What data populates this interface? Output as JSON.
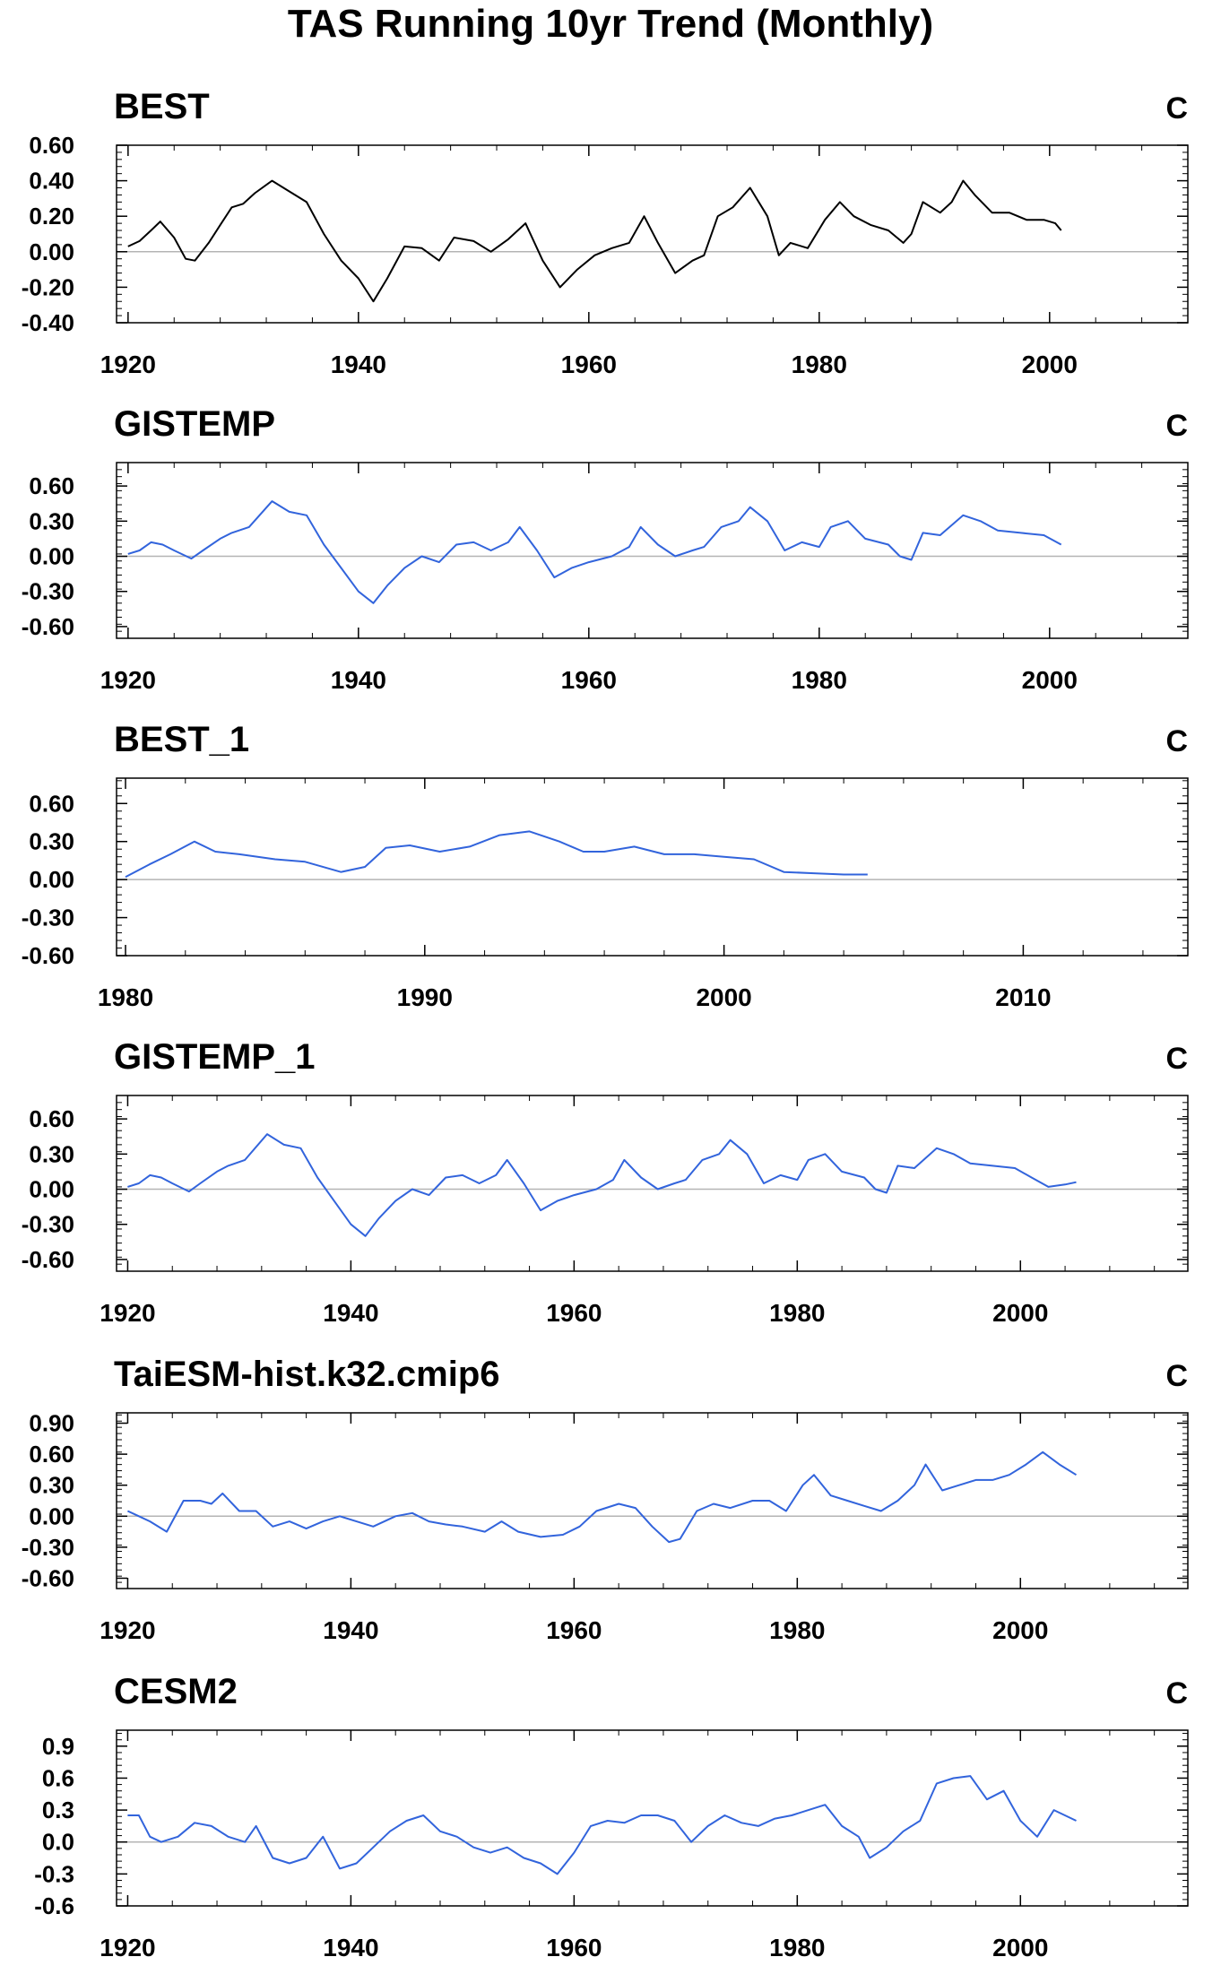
{
  "figure_title": "TAS Running 10yr Trend (Monthly)",
  "colors": {
    "obs_line": "#000000",
    "model_line": "#3264dc",
    "zero_line": "#b4b4b4",
    "frame": "#000000"
  },
  "chart_data": [
    {
      "type": "line",
      "title": "BEST",
      "units": "C",
      "color": "#000000",
      "xlim": [
        1919,
        2012
      ],
      "ylim": [
        -0.4,
        0.6
      ],
      "yticks": [
        -0.4,
        -0.2,
        0.0,
        0.2,
        0.4,
        0.6
      ],
      "ytick_labels": [
        "-0.40",
        "-0.20",
        "0.00",
        "0.20",
        "0.40",
        "0.60"
      ],
      "xticks": [
        1920,
        1940,
        1960,
        1980,
        2000
      ],
      "xtick_labels": [
        "1920",
        "1940",
        "1960",
        "1980",
        "2000"
      ],
      "x": [
        1920,
        1921,
        1922,
        1922.8,
        1924,
        1925,
        1925.8,
        1927,
        1928,
        1929,
        1930,
        1931,
        1932.5,
        1934,
        1935.5,
        1937,
        1938.5,
        1940,
        1941.3,
        1942.5,
        1944,
        1945.5,
        1947,
        1948.3,
        1950,
        1951.5,
        1953,
        1954.5,
        1956,
        1957.5,
        1959,
        1960.5,
        1962,
        1963.5,
        1964.8,
        1966,
        1967.5,
        1969,
        1970,
        1971.2,
        1972.5,
        1974,
        1975.5,
        1976.5,
        1977.5,
        1979,
        1980.5,
        1981.8,
        1983,
        1984.5,
        1986,
        1987.3,
        1988,
        1989,
        1990.5,
        1991.5,
        1992.5,
        1993.5,
        1995,
        1996.5,
        1998,
        1999.5,
        2000.5,
        2001
      ],
      "y": [
        0.03,
        0.06,
        0.12,
        0.17,
        0.08,
        -0.04,
        -0.05,
        0.05,
        0.15,
        0.25,
        0.27,
        0.33,
        0.4,
        0.34,
        0.28,
        0.1,
        -0.05,
        -0.15,
        -0.28,
        -0.15,
        0.03,
        0.02,
        -0.05,
        0.08,
        0.06,
        0.0,
        0.07,
        0.16,
        -0.05,
        -0.2,
        -0.1,
        -0.02,
        0.02,
        0.05,
        0.2,
        0.05,
        -0.12,
        -0.05,
        -0.02,
        0.2,
        0.25,
        0.36,
        0.2,
        -0.02,
        0.05,
        0.02,
        0.18,
        0.28,
        0.2,
        0.15,
        0.12,
        0.05,
        0.1,
        0.28,
        0.22,
        0.28,
        0.4,
        0.32,
        0.22,
        0.22,
        0.18,
        0.18,
        0.16,
        0.12
      ]
    },
    {
      "type": "line",
      "title": "GISTEMP",
      "units": "C",
      "color": "#3264dc",
      "xlim": [
        1919,
        2012
      ],
      "ylim": [
        -0.7,
        0.8
      ],
      "yticks": [
        -0.6,
        -0.3,
        0.0,
        0.3,
        0.6
      ],
      "ytick_labels": [
        "-0.60",
        "-0.30",
        "0.00",
        "0.30",
        "0.60"
      ],
      "xticks": [
        1920,
        1940,
        1960,
        1980,
        2000
      ],
      "xtick_labels": [
        "1920",
        "1940",
        "1960",
        "1980",
        "2000"
      ],
      "x": [
        1920,
        1921,
        1922,
        1923,
        1924,
        1925.5,
        1926.5,
        1928,
        1929,
        1930.5,
        1932.5,
        1934,
        1935.5,
        1937,
        1938.5,
        1940,
        1941.3,
        1942.5,
        1944,
        1945.5,
        1947,
        1948.5,
        1950,
        1951.5,
        1953,
        1954,
        1955.5,
        1957,
        1958.5,
        1960,
        1962,
        1963.5,
        1964.5,
        1966,
        1967.5,
        1969,
        1970,
        1971.5,
        1973,
        1974,
        1975.5,
        1977,
        1978.5,
        1980,
        1981,
        1982.5,
        1984,
        1986,
        1987,
        1988,
        1989,
        1990.5,
        1992.5,
        1994,
        1995.5,
        1997.5,
        1999.5,
        2001
      ],
      "y": [
        0.02,
        0.05,
        0.12,
        0.1,
        0.05,
        -0.02,
        0.05,
        0.15,
        0.2,
        0.25,
        0.47,
        0.38,
        0.35,
        0.1,
        -0.1,
        -0.3,
        -0.4,
        -0.25,
        -0.1,
        0.0,
        -0.05,
        0.1,
        0.12,
        0.05,
        0.12,
        0.25,
        0.05,
        -0.18,
        -0.1,
        -0.05,
        0.0,
        0.08,
        0.25,
        0.1,
        0.0,
        0.05,
        0.08,
        0.25,
        0.3,
        0.42,
        0.3,
        0.05,
        0.12,
        0.08,
        0.25,
        0.3,
        0.15,
        0.1,
        0.0,
        -0.03,
        0.2,
        0.18,
        0.35,
        0.3,
        0.22,
        0.2,
        0.18,
        0.1
      ]
    },
    {
      "type": "line",
      "title": "BEST_1",
      "units": "C",
      "color": "#3264dc",
      "xlim": [
        1979.7,
        2015.5
      ],
      "ylim": [
        -0.6,
        0.8
      ],
      "yticks": [
        -0.6,
        -0.3,
        0.0,
        0.3,
        0.6
      ],
      "ytick_labels": [
        "-0.60",
        "-0.30",
        "0.00",
        "0.30",
        "0.60"
      ],
      "xticks": [
        1980,
        1990,
        2000,
        2010
      ],
      "xtick_labels": [
        "1980",
        "1990",
        "2000",
        "2010"
      ],
      "x": [
        1980,
        1980.8,
        1981.5,
        1982.3,
        1983,
        1983.8,
        1985,
        1986,
        1987.2,
        1988,
        1988.7,
        1989.5,
        1990.5,
        1991.5,
        1992.5,
        1993.5,
        1994.5,
        1995.3,
        1996,
        1997,
        1998,
        1999,
        2000,
        2001,
        2002,
        2003,
        2004,
        2004.8
      ],
      "y": [
        0.02,
        0.12,
        0.2,
        0.3,
        0.22,
        0.2,
        0.16,
        0.14,
        0.06,
        0.1,
        0.25,
        0.27,
        0.22,
        0.26,
        0.35,
        0.38,
        0.3,
        0.22,
        0.22,
        0.26,
        0.2,
        0.2,
        0.18,
        0.16,
        0.06,
        0.05,
        0.04,
        0.04
      ]
    },
    {
      "type": "line",
      "title": "GISTEMP_1",
      "units": "C",
      "color": "#3264dc",
      "xlim": [
        1919,
        2015
      ],
      "ylim": [
        -0.7,
        0.8
      ],
      "yticks": [
        -0.6,
        -0.3,
        0.0,
        0.3,
        0.6
      ],
      "ytick_labels": [
        "-0.60",
        "-0.30",
        "0.00",
        "0.30",
        "0.60"
      ],
      "xticks": [
        1920,
        1940,
        1960,
        1980,
        2000
      ],
      "xtick_labels": [
        "1920",
        "1940",
        "1960",
        "1980",
        "2000"
      ],
      "x": [
        1920,
        1921,
        1922,
        1923,
        1924,
        1925.5,
        1926.5,
        1928,
        1929,
        1930.5,
        1932.5,
        1934,
        1935.5,
        1937,
        1938.5,
        1940,
        1941.3,
        1942.5,
        1944,
        1945.5,
        1947,
        1948.5,
        1950,
        1951.5,
        1953,
        1954,
        1955.5,
        1957,
        1958.5,
        1960,
        1962,
        1963.5,
        1964.5,
        1966,
        1967.5,
        1969,
        1970,
        1971.5,
        1973,
        1974,
        1975.5,
        1977,
        1978.5,
        1980,
        1981,
        1982.5,
        1984,
        1986,
        1987,
        1988,
        1989,
        1990.5,
        1992.5,
        1994,
        1995.5,
        1997.5,
        1999.5,
        2001,
        2002.5,
        2004,
        2005
      ],
      "y": [
        0.02,
        0.05,
        0.12,
        0.1,
        0.05,
        -0.02,
        0.05,
        0.15,
        0.2,
        0.25,
        0.47,
        0.38,
        0.35,
        0.1,
        -0.1,
        -0.3,
        -0.4,
        -0.25,
        -0.1,
        0.0,
        -0.05,
        0.1,
        0.12,
        0.05,
        0.12,
        0.25,
        0.05,
        -0.18,
        -0.1,
        -0.05,
        0.0,
        0.08,
        0.25,
        0.1,
        0.0,
        0.05,
        0.08,
        0.25,
        0.3,
        0.42,
        0.3,
        0.05,
        0.12,
        0.08,
        0.25,
        0.3,
        0.15,
        0.1,
        0.0,
        -0.03,
        0.2,
        0.18,
        0.35,
        0.3,
        0.22,
        0.2,
        0.18,
        0.1,
        0.02,
        0.04,
        0.06
      ]
    },
    {
      "type": "line",
      "title": "TaiESM-hist.k32.cmip6",
      "units": "C",
      "color": "#3264dc",
      "xlim": [
        1919,
        2015
      ],
      "ylim": [
        -0.7,
        1.0
      ],
      "yticks": [
        -0.6,
        -0.3,
        0.0,
        0.3,
        0.6,
        0.9
      ],
      "ytick_labels": [
        "-0.60",
        "-0.30",
        "0.00",
        "0.30",
        "0.60",
        "0.90"
      ],
      "xticks": [
        1920,
        1940,
        1960,
        1980,
        2000
      ],
      "xtick_labels": [
        "1920",
        "1940",
        "1960",
        "1980",
        "2000"
      ],
      "x": [
        1920,
        1921,
        1922,
        1923.5,
        1925,
        1926.5,
        1927.5,
        1928.5,
        1930,
        1931.5,
        1933,
        1934.5,
        1936,
        1937.5,
        1939,
        1940.5,
        1942,
        1944,
        1945.5,
        1947,
        1948.5,
        1950,
        1952,
        1953.5,
        1955,
        1957,
        1959,
        1960.5,
        1962,
        1964,
        1965.5,
        1967,
        1968.5,
        1969.5,
        1971,
        1972.5,
        1974,
        1976,
        1977.5,
        1979,
        1980.5,
        1981.5,
        1983,
        1984.5,
        1986,
        1987.5,
        1989,
        1990.5,
        1991.5,
        1993,
        1994.5,
        1996,
        1997.5,
        1999,
        2000.5,
        2002,
        2003.5,
        2005
      ],
      "y": [
        0.05,
        0.0,
        -0.05,
        -0.15,
        0.15,
        0.15,
        0.12,
        0.22,
        0.05,
        0.05,
        -0.1,
        -0.05,
        -0.12,
        -0.05,
        0.0,
        -0.05,
        -0.1,
        0.0,
        0.03,
        -0.05,
        -0.08,
        -0.1,
        -0.15,
        -0.05,
        -0.15,
        -0.2,
        -0.18,
        -0.1,
        0.05,
        0.12,
        0.08,
        -0.1,
        -0.25,
        -0.22,
        0.05,
        0.12,
        0.08,
        0.15,
        0.15,
        0.05,
        0.3,
        0.4,
        0.2,
        0.15,
        0.1,
        0.05,
        0.15,
        0.3,
        0.5,
        0.25,
        0.3,
        0.35,
        0.35,
        0.4,
        0.5,
        0.62,
        0.5,
        0.4
      ]
    },
    {
      "type": "line",
      "title": "CESM2",
      "units": "C",
      "color": "#3264dc",
      "xlim": [
        1919,
        2015
      ],
      "ylim": [
        -0.6,
        1.05
      ],
      "yticks": [
        -0.6,
        -0.3,
        0.0,
        0.3,
        0.6,
        0.9
      ],
      "ytick_labels": [
        "-0.6",
        "-0.3",
        "0.0",
        "0.3",
        "0.6",
        "0.9"
      ],
      "xticks": [
        1920,
        1940,
        1960,
        1980,
        2000
      ],
      "xtick_labels": [
        "1920",
        "1940",
        "1960",
        "1980",
        "2000"
      ],
      "x": [
        1920,
        1921,
        1922,
        1923,
        1924.5,
        1926,
        1927.5,
        1929,
        1930.5,
        1931.5,
        1933,
        1934.5,
        1936,
        1937.5,
        1939,
        1940.5,
        1942,
        1943.5,
        1945,
        1946.5,
        1948,
        1949.5,
        1951,
        1952.5,
        1954,
        1955.5,
        1957,
        1958.5,
        1960,
        1961.5,
        1963,
        1964.5,
        1966,
        1967.5,
        1969,
        1970.5,
        1972,
        1973.5,
        1975,
        1976.5,
        1978,
        1979.5,
        1981,
        1982.5,
        1984,
        1985.5,
        1986.5,
        1988,
        1989.5,
        1991,
        1992.5,
        1994,
        1995.5,
        1997,
        1998.5,
        2000,
        2001.5,
        2003,
        2005
      ],
      "y": [
        0.25,
        0.25,
        0.05,
        0.0,
        0.05,
        0.18,
        0.15,
        0.05,
        0.0,
        0.15,
        -0.15,
        -0.2,
        -0.15,
        0.05,
        -0.25,
        -0.2,
        -0.05,
        0.1,
        0.2,
        0.25,
        0.1,
        0.05,
        -0.05,
        -0.1,
        -0.05,
        -0.15,
        -0.2,
        -0.3,
        -0.1,
        0.15,
        0.2,
        0.18,
        0.25,
        0.25,
        0.2,
        0.0,
        0.15,
        0.25,
        0.18,
        0.15,
        0.22,
        0.25,
        0.3,
        0.35,
        0.15,
        0.05,
        -0.15,
        -0.05,
        0.1,
        0.2,
        0.55,
        0.6,
        0.62,
        0.4,
        0.48,
        0.2,
        0.05,
        0.3,
        0.2
      ]
    }
  ]
}
